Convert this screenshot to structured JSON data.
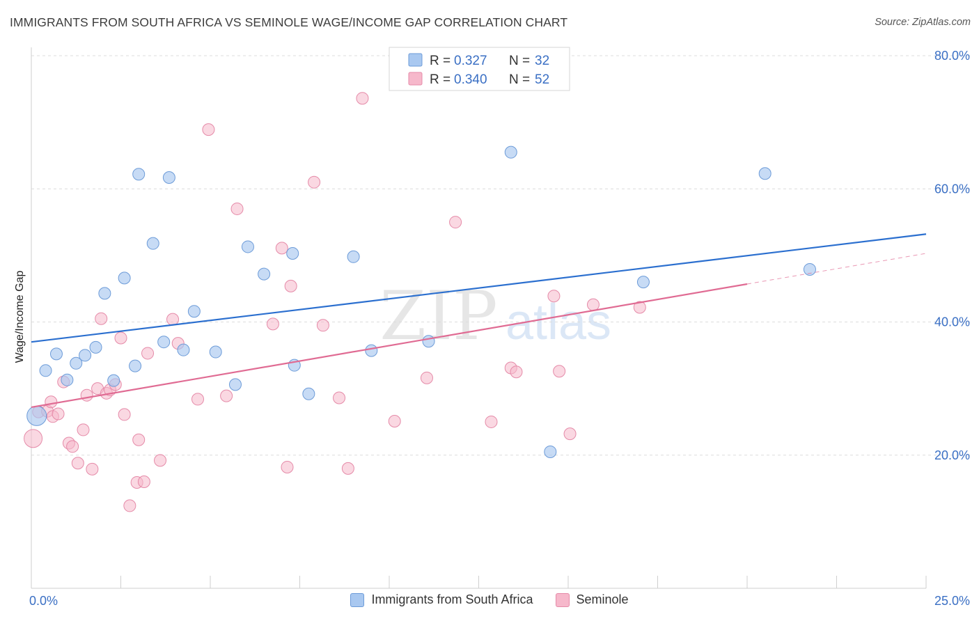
{
  "header": {
    "title": "IMMIGRANTS FROM SOUTH AFRICA VS SEMINOLE WAGE/INCOME GAP CORRELATION CHART",
    "source": "Source: ZipAtlas.com"
  },
  "watermark": {
    "zip": "ZIP",
    "atlas": "atlas"
  },
  "legend_box": {
    "rows": [
      {
        "r_label": "R =",
        "r_value": "0.327",
        "n_label": "N =",
        "n_value": "32"
      },
      {
        "r_label": "R =",
        "r_value": "0.340",
        "n_label": "N =",
        "n_value": "52"
      }
    ]
  },
  "colors": {
    "blue_fill": "#a9c8f0",
    "blue_stroke": "#6c9bd8",
    "blue_line": "#2b6fcf",
    "pink_fill": "#f6b8cb",
    "pink_stroke": "#e58aa8",
    "pink_line": "#e06b93",
    "value_text": "#3a6fc4"
  },
  "chart_data": {
    "type": "scatter",
    "title": "IMMIGRANTS FROM SOUTH AFRICA VS SEMINOLE WAGE/INCOME GAP CORRELATION CHART",
    "xlabel": "",
    "ylabel": "Wage/Income Gap",
    "xlim": [
      0,
      25
    ],
    "ylim": [
      0,
      80
    ],
    "x_tick_labels": [
      {
        "value": 0,
        "label": "0.0%"
      },
      {
        "value": 25,
        "label": "25.0%"
      }
    ],
    "y_tick_labels": [
      {
        "value": 20,
        "label": "20.0%"
      },
      {
        "value": 40,
        "label": "40.0%"
      },
      {
        "value": 60,
        "label": "60.0%"
      },
      {
        "value": 80,
        "label": "80.0%"
      }
    ],
    "grid": true,
    "legend_position": "top-center",
    "series": [
      {
        "name": "Immigrants from South Africa",
        "color": "blue",
        "R": 0.327,
        "N": 32,
        "trend": {
          "x": [
            0,
            25
          ],
          "y": [
            37.0,
            53.2
          ]
        },
        "points": [
          {
            "x": 0.15,
            "y": 25.9,
            "big": true
          },
          {
            "x": 0.4,
            "y": 32.7
          },
          {
            "x": 0.7,
            "y": 35.2
          },
          {
            "x": 1.0,
            "y": 31.3
          },
          {
            "x": 1.25,
            "y": 33.8
          },
          {
            "x": 1.5,
            "y": 35.0
          },
          {
            "x": 1.8,
            "y": 36.2
          },
          {
            "x": 2.05,
            "y": 44.3
          },
          {
            "x": 2.3,
            "y": 31.2
          },
          {
            "x": 2.6,
            "y": 46.6
          },
          {
            "x": 2.9,
            "y": 33.4
          },
          {
            "x": 3.0,
            "y": 62.2
          },
          {
            "x": 3.4,
            "y": 51.8
          },
          {
            "x": 3.7,
            "y": 37.0
          },
          {
            "x": 3.85,
            "y": 61.7
          },
          {
            "x": 4.25,
            "y": 35.8
          },
          {
            "x": 4.55,
            "y": 41.6
          },
          {
            "x": 5.15,
            "y": 35.5
          },
          {
            "x": 5.7,
            "y": 30.6
          },
          {
            "x": 6.05,
            "y": 51.3
          },
          {
            "x": 6.5,
            "y": 47.2
          },
          {
            "x": 7.3,
            "y": 50.3
          },
          {
            "x": 7.35,
            "y": 33.5
          },
          {
            "x": 7.75,
            "y": 29.2
          },
          {
            "x": 9.0,
            "y": 49.8
          },
          {
            "x": 9.5,
            "y": 35.7
          },
          {
            "x": 11.1,
            "y": 37.1
          },
          {
            "x": 13.4,
            "y": 65.5
          },
          {
            "x": 14.5,
            "y": 20.5
          },
          {
            "x": 17.1,
            "y": 46.0
          },
          {
            "x": 20.5,
            "y": 62.3
          },
          {
            "x": 21.75,
            "y": 47.9
          }
        ]
      },
      {
        "name": "Seminole",
        "color": "pink",
        "R": 0.34,
        "N": 52,
        "trend": {
          "x": [
            0,
            20
          ],
          "y": [
            27.2,
            45.7
          ]
        },
        "trend_dashed": {
          "x": [
            20,
            25
          ],
          "y": [
            45.7,
            50.3
          ]
        },
        "points": [
          {
            "x": 0.05,
            "y": 22.5,
            "big": true
          },
          {
            "x": 0.2,
            "y": 26.5
          },
          {
            "x": 0.45,
            "y": 26.6
          },
          {
            "x": 0.55,
            "y": 28.0
          },
          {
            "x": 0.6,
            "y": 25.8
          },
          {
            "x": 0.75,
            "y": 26.2
          },
          {
            "x": 0.9,
            "y": 31.0
          },
          {
            "x": 1.05,
            "y": 21.8
          },
          {
            "x": 1.15,
            "y": 21.3
          },
          {
            "x": 1.3,
            "y": 18.8
          },
          {
            "x": 1.45,
            "y": 23.8
          },
          {
            "x": 1.55,
            "y": 29.0
          },
          {
            "x": 1.7,
            "y": 17.9
          },
          {
            "x": 1.85,
            "y": 30.0
          },
          {
            "x": 1.95,
            "y": 40.5
          },
          {
            "x": 2.1,
            "y": 29.3
          },
          {
            "x": 2.2,
            "y": 29.8
          },
          {
            "x": 2.35,
            "y": 30.6
          },
          {
            "x": 2.5,
            "y": 37.6
          },
          {
            "x": 2.6,
            "y": 26.1
          },
          {
            "x": 2.75,
            "y": 12.4
          },
          {
            "x": 2.95,
            "y": 15.9
          },
          {
            "x": 3.0,
            "y": 22.3
          },
          {
            "x": 3.15,
            "y": 16.0
          },
          {
            "x": 3.25,
            "y": 35.3
          },
          {
            "x": 3.6,
            "y": 19.2
          },
          {
            "x": 3.95,
            "y": 40.4
          },
          {
            "x": 4.1,
            "y": 36.8
          },
          {
            "x": 4.65,
            "y": 28.4
          },
          {
            "x": 4.95,
            "y": 68.9
          },
          {
            "x": 5.45,
            "y": 28.9
          },
          {
            "x": 5.75,
            "y": 57.0
          },
          {
            "x": 6.75,
            "y": 39.7
          },
          {
            "x": 7.0,
            "y": 51.1
          },
          {
            "x": 7.15,
            "y": 18.2
          },
          {
            "x": 7.25,
            "y": 45.4
          },
          {
            "x": 7.9,
            "y": 61.0
          },
          {
            "x": 8.15,
            "y": 39.5
          },
          {
            "x": 8.6,
            "y": 28.6
          },
          {
            "x": 8.85,
            "y": 18.0
          },
          {
            "x": 9.25,
            "y": 73.6
          },
          {
            "x": 10.15,
            "y": 25.1
          },
          {
            "x": 11.05,
            "y": 31.6
          },
          {
            "x": 11.85,
            "y": 55.0
          },
          {
            "x": 12.85,
            "y": 25.0
          },
          {
            "x": 13.4,
            "y": 33.1
          },
          {
            "x": 13.55,
            "y": 32.5
          },
          {
            "x": 14.6,
            "y": 43.9
          },
          {
            "x": 14.75,
            "y": 32.6
          },
          {
            "x": 15.05,
            "y": 23.2
          },
          {
            "x": 15.7,
            "y": 42.6
          },
          {
            "x": 17.0,
            "y": 42.2
          }
        ]
      }
    ]
  }
}
